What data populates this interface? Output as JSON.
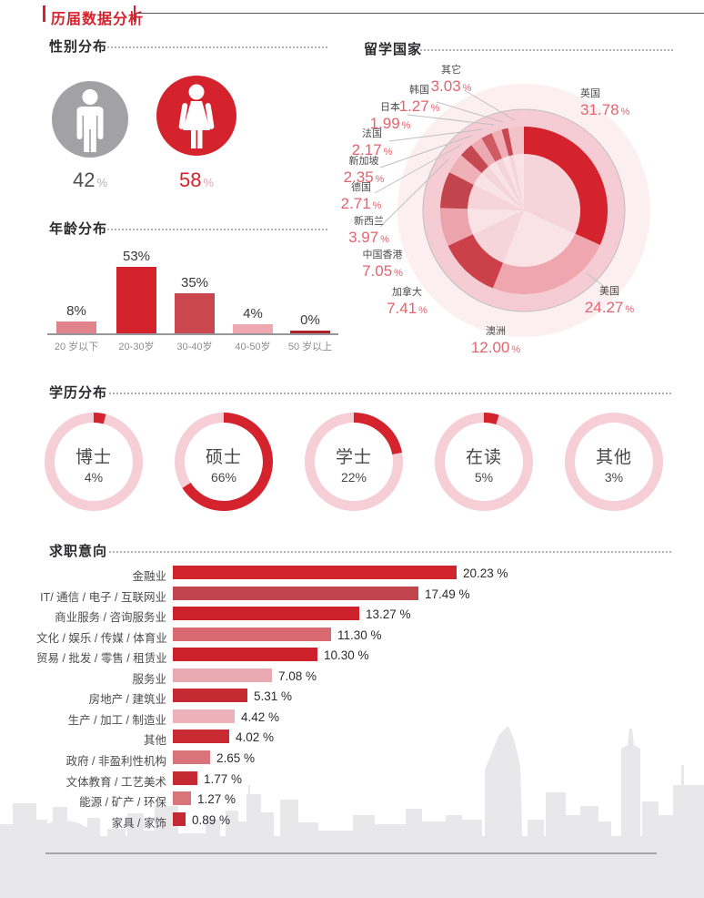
{
  "page": {
    "title": "历届数据分析"
  },
  "chart_data": [
    {
      "id": "gender",
      "type": "pictogram",
      "title": "性别分布",
      "percent_sign": "%",
      "series": [
        {
          "label": "男",
          "value": "42",
          "color": "#a2a2a4",
          "text_color": "#4e4e50",
          "sign_color": "#b3b3b7"
        },
        {
          "label": "女",
          "value": "58",
          "color": "#d5232e",
          "text_color": "#d5232e",
          "sign_color": "#e9a3aa"
        }
      ]
    },
    {
      "id": "age",
      "type": "bar",
      "title": "年龄分布",
      "categories": [
        "20 岁以下",
        "20-30岁",
        "30-40岁",
        "40-50岁",
        "50 岁以上"
      ],
      "values": [
        8,
        53,
        35,
        4,
        0
      ],
      "value_labels": [
        "8%",
        "53%",
        "35%",
        "4%",
        "0%"
      ],
      "colors": [
        "#e0838b",
        "#d5232e",
        "#ca474e",
        "#efa8af",
        "#ac2027"
      ],
      "ylim": [
        0,
        60
      ],
      "grid": false
    },
    {
      "id": "countries",
      "type": "donut",
      "title": "留学国家",
      "series": [
        {
          "name": "英国",
          "value": 31.78,
          "display": "31.78",
          "color": "#d5232e"
        },
        {
          "name": "美国",
          "value": 24.27,
          "display": "24.27",
          "color": "#f0a6ae"
        },
        {
          "name": "澳洲",
          "value": 12.0,
          "display": "12.00",
          "color": "#cb4049"
        },
        {
          "name": "加拿大",
          "value": 7.41,
          "display": "7.41",
          "color": "#eda3ab"
        },
        {
          "name": "中国香港",
          "value": 7.05,
          "display": "7.05",
          "color": "#c2444c"
        },
        {
          "name": "新西兰",
          "value": 3.97,
          "display": "3.97",
          "color": "#f0b0b8"
        },
        {
          "name": "德国",
          "value": 2.71,
          "display": "2.71",
          "color": "#c64850"
        },
        {
          "name": "新加坡",
          "value": 2.35,
          "display": "2.35",
          "color": "#eeaab2"
        },
        {
          "name": "法国",
          "value": 2.17,
          "display": "2.17",
          "color": "#d05a62"
        },
        {
          "name": "日本",
          "value": 1.99,
          "display": "1.99",
          "color": "#f0afb6"
        },
        {
          "name": "韩国",
          "value": 1.27,
          "display": "1.27",
          "color": "#c84851"
        },
        {
          "name": "其它",
          "value": 3.03,
          "display": "3.03",
          "color": "#f2c3c9"
        }
      ],
      "percent_sign": "%",
      "inner_wedge_colors": [
        "#f5d5da",
        "#f9e3e6"
      ],
      "halo_color": "#fceff1",
      "band_color": "#f5ccd3",
      "outline_color": "#bfbfc3"
    },
    {
      "id": "education",
      "type": "rings",
      "title": "学历分布",
      "ring_base_color": "#f6ced5",
      "arc_color": "#d5232e",
      "items": [
        {
          "label": "博士",
          "value": 4,
          "display": "4%",
          "arc": true
        },
        {
          "label": "硕士",
          "value": 66,
          "display": "66%",
          "arc": true
        },
        {
          "label": "学士",
          "value": 22,
          "display": "22%",
          "arc": true
        },
        {
          "label": "在读",
          "value": 5,
          "display": "5%",
          "arc": true
        },
        {
          "label": "其他",
          "value": 3,
          "display": "3%",
          "arc": false
        }
      ]
    },
    {
      "id": "jobs",
      "type": "hbar",
      "title": "求职意向",
      "categories": [
        "金融业",
        "IT/ 通信 / 电子 / 互联网业",
        "商业服务 / 咨询服务业",
        "文化 / 娱乐 / 传媒 / 体育业",
        "贸易 / 批发 / 零售 / 租赁业",
        "服务业",
        "房地产 / 建筑业",
        "生产 / 加工 / 制造业",
        "其他",
        "政府 / 非盈利性机构",
        "文体教育 / 工艺美术",
        "能源 / 矿产 / 环保",
        "家具 / 家饰"
      ],
      "values": [
        20.23,
        17.49,
        13.27,
        11.3,
        10.3,
        7.08,
        5.31,
        4.42,
        4.02,
        2.65,
        1.77,
        1.27,
        0.89
      ],
      "value_labels": [
        "20.23 %",
        "17.49 %",
        "13.27 %",
        "11.30 %",
        "10.30 %",
        "7.08 %",
        "5.31 %",
        "4.42 %",
        "4.02 %",
        "2.65 %",
        "1.77 %",
        "1.27 %",
        "0.89 %"
      ],
      "colors": [
        "#d2242d",
        "#c1454d",
        "#cd222b",
        "#d96a71",
        "#cd222b",
        "#e8a9b0",
        "#c52a32",
        "#edb2b9",
        "#ca2a31",
        "#d8747a",
        "#c52a32",
        "#d8757b",
        "#c52a32"
      ]
    }
  ]
}
